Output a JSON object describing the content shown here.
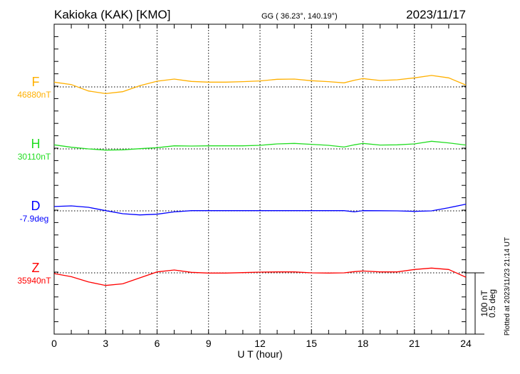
{
  "header": {
    "station": "Kakioka (KAK)  [KMO]",
    "coords": "GG ( 36.23°, 140.19°)",
    "date": "2023/11/17"
  },
  "footer": {
    "plotted_at": "Plotted at 2023/11/23 21:14 UT"
  },
  "chart_data": {
    "type": "line",
    "xlabel": "U T (hour)",
    "xlim": [
      0,
      24
    ],
    "xticks": [
      0,
      3,
      6,
      9,
      12,
      15,
      18,
      21,
      24
    ],
    "grid": true,
    "scale_bar": {
      "nT": "100 nT",
      "deg": "0.5 deg"
    },
    "x": [
      0,
      1,
      2,
      3,
      4,
      5,
      6,
      7,
      8,
      9,
      10,
      11,
      12,
      13,
      14,
      15,
      16,
      16.9,
      17.5,
      18,
      19,
      20,
      21,
      22,
      23,
      24
    ],
    "series": [
      {
        "name": "F",
        "baseline_label": "46880nT",
        "baseline": 46880,
        "unit": "nT",
        "color": "#ffb000",
        "values": [
          46887.7,
          46883.8,
          46873.5,
          46869.2,
          46872.3,
          46881.9,
          46889.2,
          46892.7,
          46888.8,
          46887.7,
          46887.7,
          46888.5,
          46889.6,
          46892.3,
          46892.7,
          46890,
          46888.5,
          46886.5,
          46890.8,
          46893.5,
          46890.4,
          46891.5,
          46894.6,
          46898.5,
          46894.6,
          46883
        ]
      },
      {
        "name": "H",
        "baseline_label": "30110nT",
        "baseline": 30110,
        "unit": "nT",
        "color": "#22dd22",
        "values": [
          30116.5,
          30112.7,
          30110,
          30108.1,
          30108.5,
          30110.4,
          30111.9,
          30115,
          30114.6,
          30115,
          30115,
          30115,
          30115.8,
          30118,
          30118.8,
          30117.3,
          30115.8,
          30113,
          30116.5,
          30118.8,
          30116.2,
          30116.5,
          30118,
          30122.3,
          30119.6,
          30116.2
        ]
      },
      {
        "name": "D",
        "baseline_label": "-7.9deg",
        "baseline": -7.9,
        "unit": "deg",
        "color": "#0000ff",
        "values": [
          -7.865,
          -7.86,
          -7.871,
          -7.898,
          -7.923,
          -7.933,
          -7.927,
          -7.908,
          -7.898,
          -7.898,
          -7.898,
          -7.898,
          -7.898,
          -7.898,
          -7.898,
          -7.898,
          -7.898,
          -7.898,
          -7.908,
          -7.898,
          -7.899,
          -7.9,
          -7.904,
          -7.9,
          -7.875,
          -7.846
        ]
      },
      {
        "name": "Z",
        "baseline_label": "35940nT",
        "baseline": 35940,
        "unit": "nT",
        "color": "#ff0000",
        "values": [
          35938.8,
          35933.8,
          35925.4,
          35919.6,
          35922.3,
          35932,
          35941.5,
          35944.6,
          35940.8,
          35939.6,
          35939.6,
          35940.4,
          35941.2,
          35941.5,
          35941.5,
          35940,
          35939.6,
          35940,
          35942,
          35943,
          35941.5,
          35941.5,
          35945.4,
          35947.7,
          35945.4,
          35933
        ]
      }
    ]
  }
}
